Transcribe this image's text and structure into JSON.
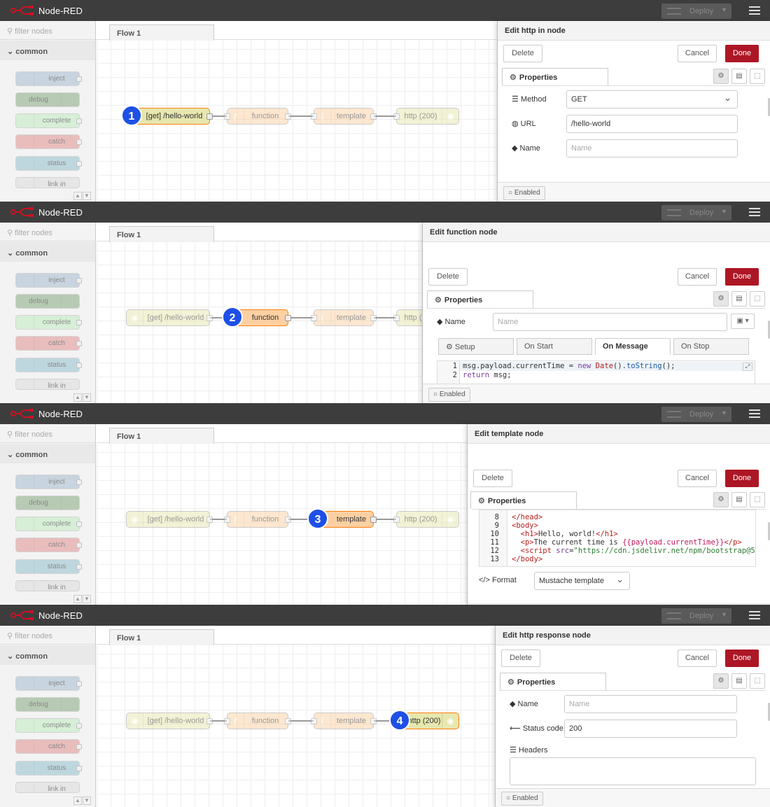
{
  "app": {
    "name": "Node-RED",
    "deploy_label": "Deploy"
  },
  "palette": {
    "filter_placeholder": "filter nodes",
    "category": "common",
    "items": [
      {
        "label": "inject",
        "color": "#a6bbcf"
      },
      {
        "label": "debug",
        "color": "#87a980"
      },
      {
        "label": "complete",
        "color": "#c0edc0"
      },
      {
        "label": "catch",
        "color": "#e49191"
      },
      {
        "label": "status",
        "color": "#94c1d0"
      },
      {
        "label": "link in",
        "color": "#dddddd"
      }
    ]
  },
  "workspace": {
    "tab": "Flow 1"
  },
  "flow_nodes": [
    {
      "label": "[get] /hello-world",
      "color": "#e7e7ae"
    },
    {
      "label": "function",
      "color": "#fdd0a2"
    },
    {
      "label": "template",
      "color": "#fdd0a2"
    },
    {
      "label": "http (200)",
      "color": "#e7e7ae"
    }
  ],
  "common": {
    "delete": "Delete",
    "cancel": "Cancel",
    "done": "Done",
    "properties": "Properties",
    "enabled": "Enabled",
    "name_label": "Name",
    "name_placeholder": "Name"
  },
  "panels": [
    {
      "badge": "1",
      "title": "Edit http in node",
      "method_label": "Method",
      "method_value": "GET",
      "url_label": "URL",
      "url_value": "/hello-world"
    },
    {
      "badge": "2",
      "title": "Edit function node",
      "tabs": [
        "Setup",
        "On Start",
        "On Message",
        "On Stop"
      ],
      "code": [
        {
          "n": "1",
          "t": "msg.payload.currentTime = new Date().toString();"
        },
        {
          "n": "2",
          "t": "return msg;"
        }
      ]
    },
    {
      "badge": "3",
      "title": "Edit template node",
      "code_lines": [
        {
          "n": "8",
          "t": "</head>"
        },
        {
          "n": "9",
          "t": "<body>"
        },
        {
          "n": "10",
          "t": "  <h1>Hello, world!</h1>"
        },
        {
          "n": "11",
          "t": "  <p>The current time is {{payload.currentTime}}</p>"
        },
        {
          "n": "12",
          "t": "  <script src=\"https://cdn.jsdelivr.net/npm/bootstrap@5"
        },
        {
          "n": "13",
          "t": "</body>"
        }
      ],
      "format_label": "Format",
      "format_value": "Mustache template"
    },
    {
      "badge": "4",
      "title": "Edit http response node",
      "status_label": "Status code",
      "status_value": "200",
      "headers_label": "Headers"
    }
  ]
}
